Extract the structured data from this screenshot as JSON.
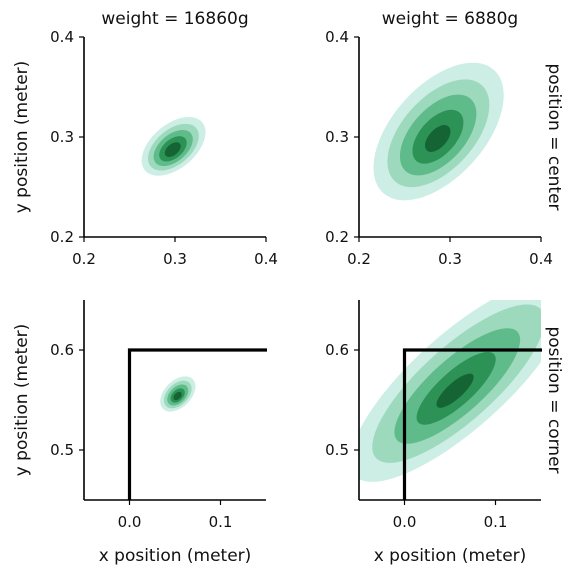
{
  "chart_data": {
    "type": "contour",
    "grid": false,
    "contour_colors": [
      "#cdeee4",
      "#9dd9bd",
      "#5fbb8a",
      "#2d9255",
      "#156434"
    ],
    "col_titles": [
      "weight = 16860g",
      "weight = 6880g"
    ],
    "row_labels": [
      "position = center",
      "position = corner"
    ],
    "xlabel": "x position (meter)",
    "ylabel": "y position (meter)",
    "panels": [
      {
        "id": "center-16860",
        "weight": "16860g",
        "position": "center",
        "xlim": [
          0.2,
          0.4
        ],
        "ylim": [
          0.2,
          0.4
        ],
        "xticks": [
          0.2,
          0.3,
          0.4
        ],
        "xtick_labels": [
          "0.2",
          "0.3",
          "0.4"
        ],
        "yticks": [
          0.2,
          0.3,
          0.4
        ],
        "ytick_labels": [
          "0.2",
          "0.3",
          "0.4"
        ],
        "density": {
          "cx": 0.298,
          "cy": 0.289,
          "sx": 0.011,
          "sy": 0.017,
          "tilt": 50
        },
        "levels": [
          2.2,
          1.75,
          1.35,
          0.95,
          0.55
        ]
      },
      {
        "id": "center-6880",
        "weight": "6880g",
        "position": "center",
        "xlim": [
          0.2,
          0.4
        ],
        "ylim": [
          0.2,
          0.4
        ],
        "xticks": [
          0.2,
          0.3,
          0.4
        ],
        "xtick_labels": [
          "0.2",
          "0.3",
          "0.4"
        ],
        "yticks": [
          0.2,
          0.3,
          0.4
        ],
        "ytick_labels": [
          "0.2",
          "0.3",
          "0.4"
        ],
        "density": {
          "cx": 0.287,
          "cy": 0.302,
          "sx": 0.022,
          "sy": 0.036,
          "tilt": 42
        },
        "levels": [
          2.3,
          1.8,
          1.35,
          0.9,
          0.45
        ]
      },
      {
        "id": "corner-16860",
        "weight": "16860g",
        "position": "corner",
        "xlim": [
          -0.05,
          0.15
        ],
        "ylim": [
          0.45,
          0.65
        ],
        "xticks": [
          0.0,
          0.1
        ],
        "xtick_labels": [
          "0.0",
          "0.1"
        ],
        "yticks": [
          0.5,
          0.6
        ],
        "ytick_labels": [
          "0.5",
          "0.6"
        ],
        "density": {
          "cx": 0.053,
          "cy": 0.555,
          "sx": 0.007,
          "sy": 0.01,
          "tilt": 45
        },
        "levels": [
          2.1,
          1.65,
          1.25,
          0.85,
          0.5
        ],
        "region_corner": [
          0.0,
          0.6
        ]
      },
      {
        "id": "corner-6880",
        "weight": "6880g",
        "position": "corner",
        "xlim": [
          -0.05,
          0.15
        ],
        "ylim": [
          0.45,
          0.65
        ],
        "xticks": [
          0.0,
          0.1
        ],
        "xtick_labels": [
          "0.0",
          "0.1"
        ],
        "yticks": [
          0.5,
          0.6
        ],
        "ytick_labels": [
          "0.5",
          "0.6"
        ],
        "density": {
          "cx": 0.058,
          "cy": 0.564,
          "sx": 0.022,
          "sy": 0.06,
          "tilt": 48
        },
        "levels": [
          2.35,
          1.85,
          1.35,
          0.85,
          0.4
        ],
        "region_corner": [
          0.0,
          0.6
        ]
      }
    ]
  }
}
